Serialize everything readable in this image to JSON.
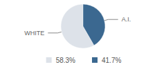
{
  "chart_data": {
    "type": "pie",
    "categories": [
      "WHITE",
      "A.I."
    ],
    "values": [
      58.3,
      41.7
    ],
    "value_labels": [
      "58.3%",
      "41.7%"
    ],
    "colors": [
      "#dde2e9",
      "#3b6890"
    ],
    "legend": "bottom"
  }
}
